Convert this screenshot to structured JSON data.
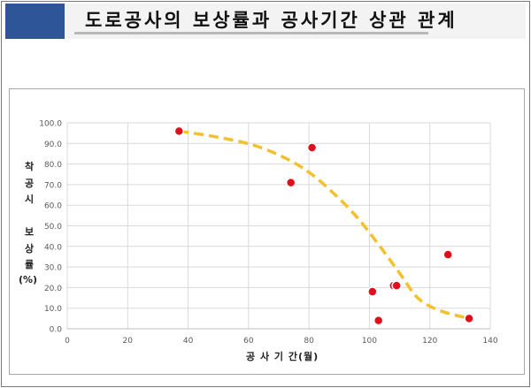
{
  "header": {
    "title": "도로공사의 보상률과 공사기간 상관 관계"
  },
  "chart_data": {
    "type": "scatter",
    "title": "",
    "xlabel": "공 사 기 간(월)",
    "ylabel_lines": [
      "착",
      "공",
      "시",
      "",
      "보",
      "상",
      "률",
      "(%)"
    ],
    "xlim": [
      0,
      140
    ],
    "ylim": [
      0,
      100
    ],
    "x_ticks": [
      0,
      20,
      40,
      60,
      80,
      100,
      120,
      140
    ],
    "y_ticks": [
      "0.0",
      "10.0",
      "20.0",
      "30.0",
      "40.0",
      "50.0",
      "60.0",
      "70.0",
      "80.0",
      "90.0",
      "100.0"
    ],
    "grid": true,
    "series": [
      {
        "kind": "points",
        "color": "#e0101a",
        "points": [
          {
            "x": 37,
            "y": 96
          },
          {
            "x": 74,
            "y": 71
          },
          {
            "x": 81,
            "y": 88
          },
          {
            "x": 101,
            "y": 18
          },
          {
            "x": 103,
            "y": 4
          },
          {
            "x": 108,
            "y": 21
          },
          {
            "x": 109,
            "y": 21
          },
          {
            "x": 126,
            "y": 36
          },
          {
            "x": 133,
            "y": 5
          }
        ]
      },
      {
        "kind": "trend",
        "color": "#f2c12e",
        "style": "dashed",
        "points": [
          {
            "x": 37,
            "y": 96
          },
          {
            "x": 50,
            "y": 93
          },
          {
            "x": 62,
            "y": 89
          },
          {
            "x": 72,
            "y": 83
          },
          {
            "x": 80,
            "y": 76
          },
          {
            "x": 88,
            "y": 66
          },
          {
            "x": 96,
            "y": 54
          },
          {
            "x": 104,
            "y": 39
          },
          {
            "x": 110,
            "y": 27
          },
          {
            "x": 116,
            "y": 15
          },
          {
            "x": 123,
            "y": 9
          },
          {
            "x": 133,
            "y": 5
          }
        ]
      }
    ]
  }
}
